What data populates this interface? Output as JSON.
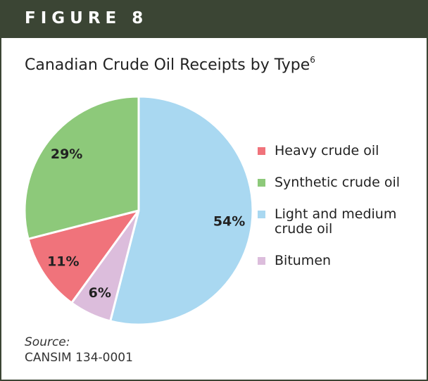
{
  "header": "FIGURE 8",
  "chart_data": {
    "type": "pie",
    "title": "Canadian Crude Oil Receipts by Type",
    "title_footnote": "6",
    "series": [
      {
        "name": "Heavy crude oil",
        "color": "#f0737b",
        "values": [
          11
        ]
      },
      {
        "name": "Synthetic crude oil",
        "color": "#8dc97a",
        "values": [
          29
        ]
      },
      {
        "name": "Light and medium crude oil",
        "color": "#a9d8f1",
        "values": [
          54
        ]
      },
      {
        "name": "Bitumen",
        "color": "#dcbddc",
        "values": [
          6
        ]
      }
    ],
    "value_labels": [
      "11%",
      "29%",
      "54%",
      "6%"
    ]
  },
  "source": {
    "label": "Source:",
    "text": "CANSIM 134-0001"
  }
}
